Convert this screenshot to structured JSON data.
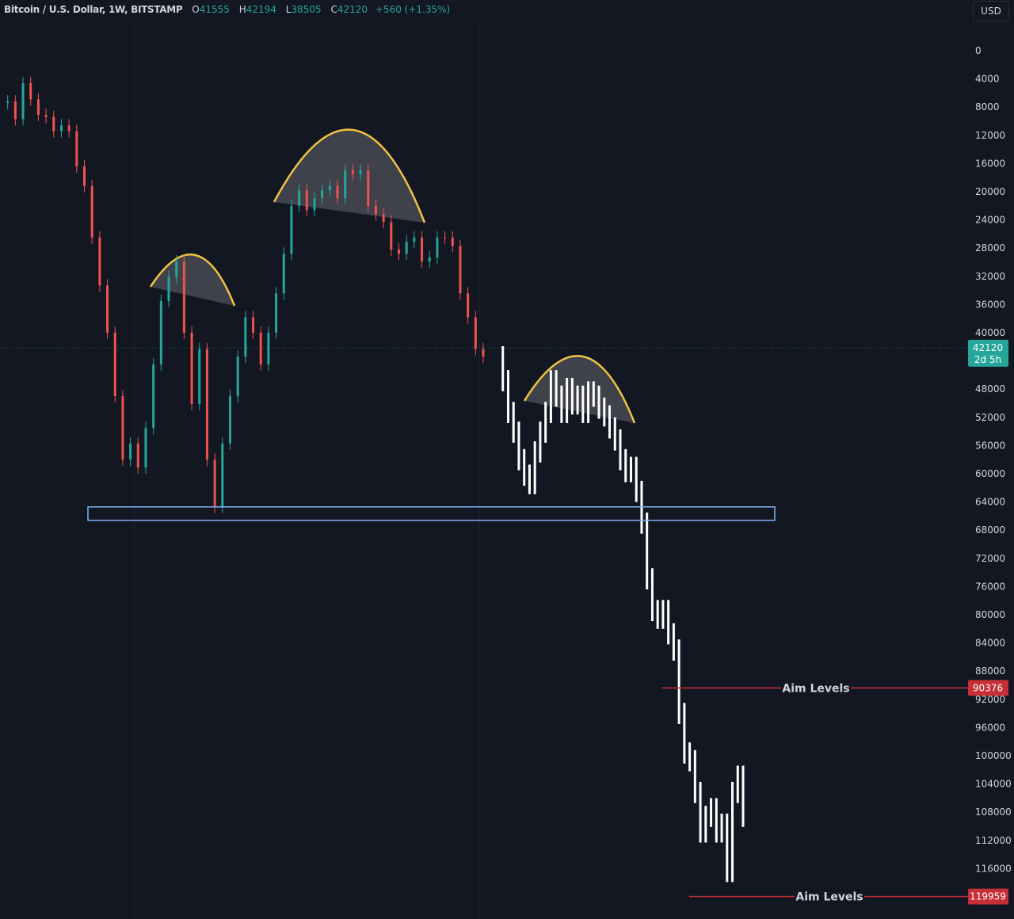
{
  "header": {
    "symbol": "Bitcoin / U.S. Dollar, 1W, BITSTAMP",
    "o_label": "O",
    "o": "41555",
    "h_label": "H",
    "h": "42194",
    "l_label": "L",
    "l": "38505",
    "c_label": "C",
    "c": "42120",
    "change": "+560 (+1.35%)"
  },
  "currency_button": "USD",
  "colors": {
    "background": "#131722",
    "up": "#26a69a",
    "down": "#ef5350",
    "projection": "#ffffff",
    "arc": "#f0c341",
    "support_box": "#7fb3f5",
    "aim": "#c62f35",
    "last_price": "#26a69a"
  },
  "chart_data": {
    "type": "candlestick",
    "y_axis_inverted": true,
    "ylim": [
      0,
      120000
    ],
    "yticks": [
      0,
      4000,
      8000,
      12000,
      16000,
      20000,
      24000,
      28000,
      32000,
      36000,
      40000,
      48000,
      52000,
      56000,
      60000,
      64000,
      68000,
      72000,
      76000,
      80000,
      84000,
      88000,
      92000,
      96000,
      100000,
      104000,
      108000,
      112000,
      116000
    ],
    "history_closes": [
      7400,
      7200,
      9700,
      4600,
      6900,
      9100,
      9400,
      11400,
      10600,
      11400,
      16400,
      19200,
      26500,
      33300,
      40000,
      49000,
      58000,
      55700,
      59100,
      53500,
      44500,
      35500,
      32100,
      29900,
      40000,
      50100,
      42300,
      58000,
      64700,
      55700,
      49000,
      43400,
      37800,
      40000,
      44500,
      40000,
      34400,
      28800,
      22000,
      19800,
      22600,
      20900,
      19800,
      19200,
      20900,
      17000,
      17500,
      17000,
      22000,
      23200,
      24300,
      28200,
      28800,
      27100,
      26500,
      29900,
      29300,
      26500,
      26500,
      27700,
      34400,
      37800,
      42300,
      43400
    ],
    "projection_closes": [
      43400,
      46800,
      51300,
      54100,
      58000,
      60200,
      61400,
      56900,
      54100,
      51300,
      46800,
      49000,
      51300,
      47900,
      50100,
      49000,
      51300,
      48400,
      49000,
      50700,
      51800,
      53500,
      55200,
      58000,
      59700,
      59100,
      62500,
      67000,
      74900,
      79400,
      80500,
      79400,
      82700,
      85000,
      94000,
      99600,
      100700,
      105200,
      110800,
      108600,
      107500,
      110800,
      109700,
      116400,
      105200,
      102900,
      108600
    ],
    "last_price": {
      "value": 42120,
      "label": "42120",
      "countdown": "2d 5h"
    },
    "support_zone": [
      64700,
      66600
    ],
    "aim_levels": [
      {
        "value": 90376,
        "label": "90376",
        "text": "Aim Levels"
      },
      {
        "value": 119959,
        "label": "119959",
        "text": "Aim Levels"
      }
    ]
  }
}
